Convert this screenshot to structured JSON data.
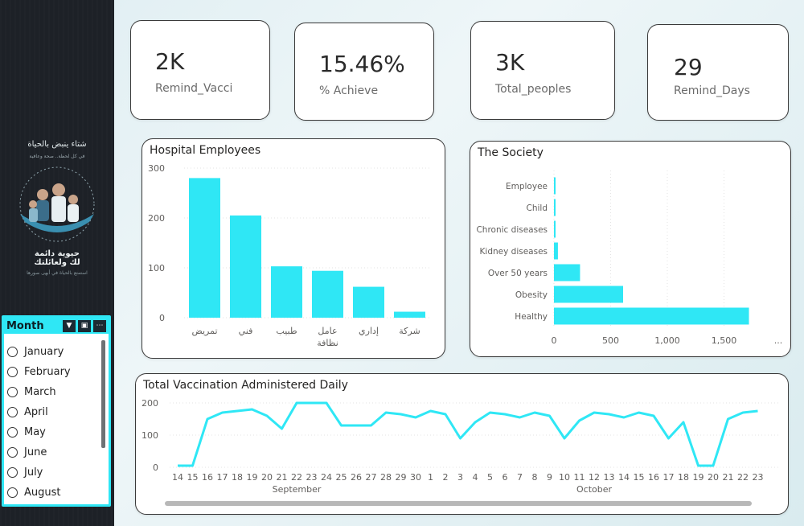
{
  "sidebar": {
    "logo_line1": "شتاء ينبض بالحياة",
    "logo_sub": "في كل لحظة.. صحة وعافية",
    "logo_big1": "حيوية دائمة",
    "logo_big2": "لك ولعائلتك",
    "logo_small": "استمتع بالحياة في أبهى صورها"
  },
  "slicer": {
    "title": "Month",
    "icons": [
      "filter-icon",
      "focus-icon",
      "more-icon"
    ],
    "items": [
      "January",
      "February",
      "March",
      "April",
      "May",
      "June",
      "July",
      "August"
    ]
  },
  "kpis": [
    {
      "value": "2K",
      "label": "Remind_Vacci"
    },
    {
      "value": "15.46%",
      "label": "% Achieve"
    },
    {
      "value": "3K",
      "label": "Total_peoples"
    },
    {
      "value": "29",
      "label": "Remind_Days"
    }
  ],
  "colors": {
    "accent": "#2fe7f5",
    "sidebar": "#1d2127"
  },
  "chart_data": [
    {
      "type": "bar",
      "title": "Hospital Employees",
      "categories": [
        "تمريض",
        "فني",
        "طبيب",
        "عامل نظافة",
        "إداري",
        "شركة"
      ],
      "category_lines": [
        [
          "تمريض"
        ],
        [
          "فني"
        ],
        [
          "طبيب"
        ],
        [
          "عامل",
          "نظافة"
        ],
        [
          "إداري"
        ],
        [
          "شركة"
        ]
      ],
      "values": [
        280,
        205,
        103,
        94,
        62,
        12
      ],
      "ylim": [
        0,
        300
      ],
      "yticks": [
        "0",
        "100",
        "200",
        "300"
      ]
    },
    {
      "type": "bar",
      "orientation": "horizontal",
      "title": "The Society",
      "categories": [
        "Employee",
        "Child",
        "Chronic diseases",
        "Kidney diseases",
        "Over 50 years",
        "Obesity",
        "Healthy"
      ],
      "values": [
        10,
        5,
        8,
        35,
        230,
        610,
        1720
      ],
      "xlim": [
        0,
        2000
      ],
      "xticks": [
        "0",
        "500",
        "1,000",
        "1,500"
      ],
      "more_indicator": "..."
    },
    {
      "type": "line",
      "title": "Total Vaccination Administered Daily",
      "x": [
        "14",
        "15",
        "16",
        "17",
        "18",
        "19",
        "20",
        "21",
        "22",
        "23",
        "24",
        "25",
        "26",
        "27",
        "28",
        "29",
        "30",
        "1",
        "2",
        "3",
        "4",
        "5",
        "6",
        "7",
        "8",
        "9",
        "10",
        "11",
        "12",
        "13",
        "14",
        "15",
        "16",
        "17",
        "18",
        "19",
        "20",
        "21",
        "22",
        "23"
      ],
      "values": [
        5,
        5,
        150,
        170,
        175,
        180,
        160,
        120,
        200,
        200,
        200,
        130,
        130,
        130,
        170,
        165,
        155,
        175,
        165,
        90,
        140,
        170,
        165,
        155,
        170,
        160,
        90,
        145,
        170,
        165,
        155,
        170,
        160,
        90,
        140,
        5,
        5,
        150,
        170,
        175
      ],
      "months": [
        "September",
        "October"
      ],
      "ylim": [
        0,
        200
      ],
      "yticks": [
        "0",
        "100",
        "200"
      ]
    }
  ]
}
